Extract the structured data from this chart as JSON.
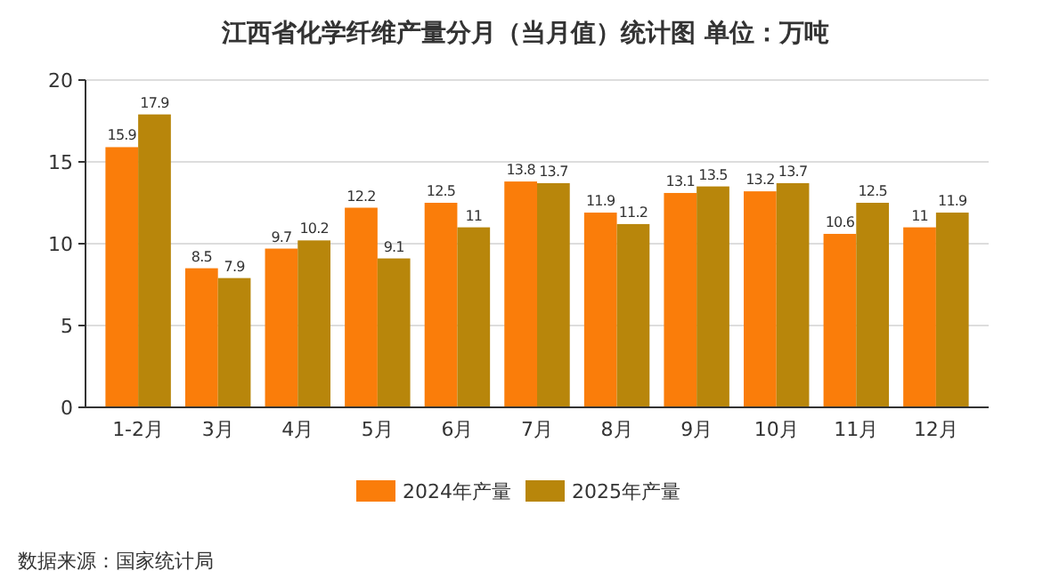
{
  "chart_data": {
    "type": "bar",
    "title": "江西省化学纤维产量分月（当月值）统计图 单位：万吨",
    "categories": [
      "1-2月",
      "3月",
      "4月",
      "5月",
      "6月",
      "7月",
      "8月",
      "9月",
      "10月",
      "11月",
      "12月"
    ],
    "series": [
      {
        "name": "2024年产量",
        "color": "#fa7d0a",
        "values": [
          15.9,
          8.5,
          9.7,
          12.2,
          12.5,
          13.8,
          11.9,
          13.1,
          13.2,
          10.6,
          11
        ]
      },
      {
        "name": "2025年产量",
        "color": "#b8860b",
        "values": [
          17.9,
          7.9,
          10.2,
          9.1,
          11,
          13.7,
          11.2,
          13.5,
          13.7,
          12.5,
          11.9
        ]
      }
    ],
    "ylim": [
      0,
      20
    ],
    "yticks": [
      0,
      5,
      10,
      15,
      20
    ],
    "grid": "y",
    "legend": "bottom",
    "data_labels": true,
    "annotations": [
      "数据来源：国家统计局"
    ]
  }
}
